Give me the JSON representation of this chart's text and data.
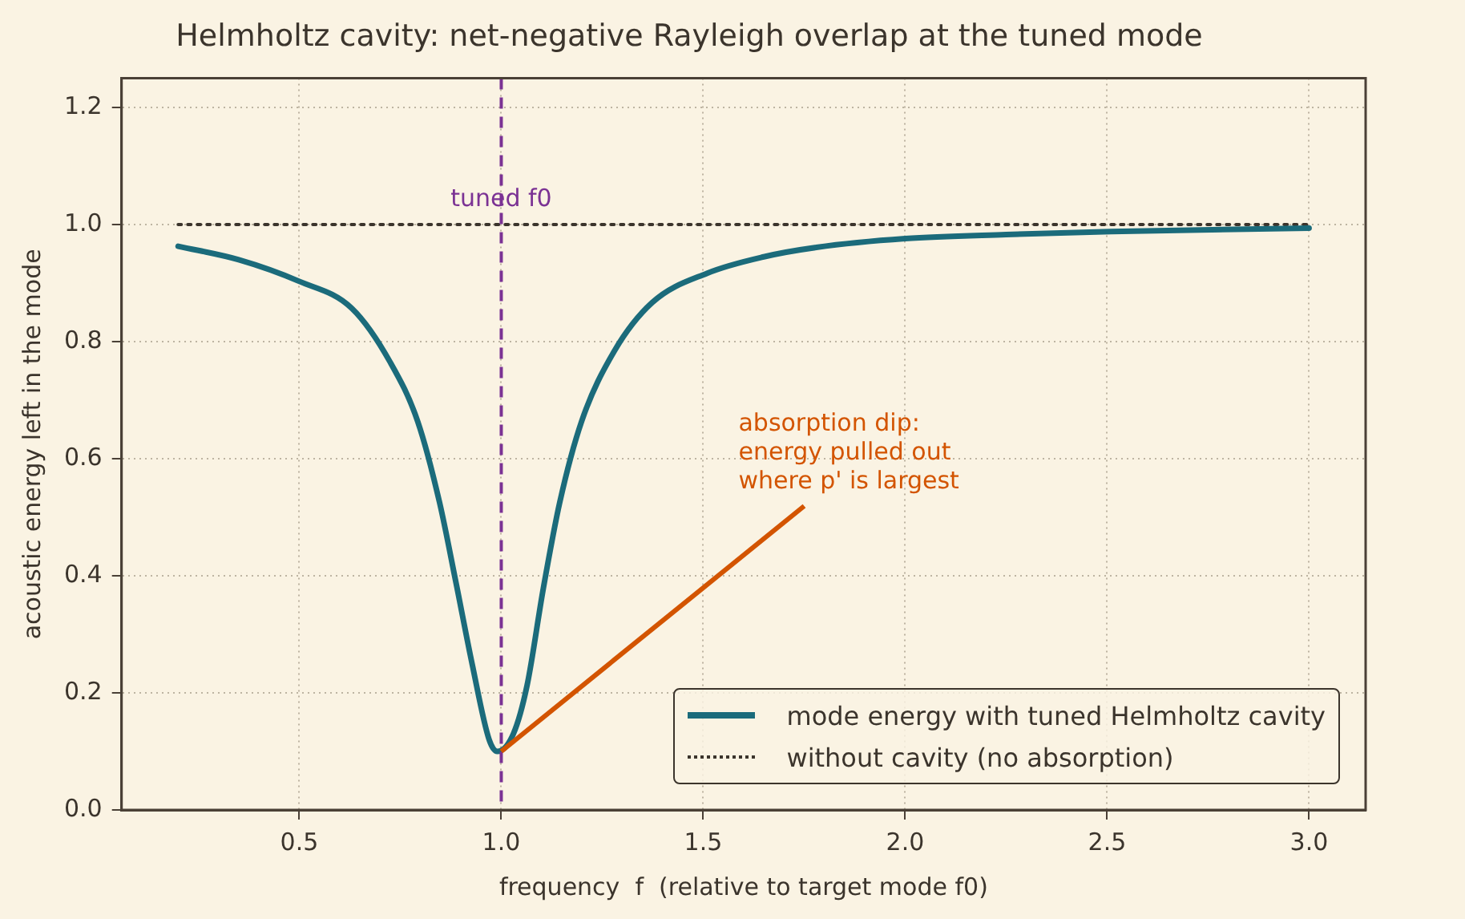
{
  "chart_data": {
    "type": "line",
    "title": "Helmholtz cavity: net-negative Rayleigh overlap at the tuned mode",
    "xlabel": "frequency  f  (relative to target mode f0)",
    "ylabel": "acoustic energy left in the mode",
    "xlim": [
      0.06,
      3.14
    ],
    "xticks": [
      0.5,
      {
        "value": 1,
        "label": "1.0"
      },
      1.5,
      {
        "value": 2,
        "label": "2.0"
      },
      2.5,
      {
        "value": 3,
        "label": "3.0"
      }
    ],
    "ylim": [
      0,
      1.25
    ],
    "yticks": [
      {
        "value": 0,
        "label": "0.0"
      },
      0.2,
      0.4,
      0.6,
      0.8,
      {
        "value": 1,
        "label": "1.0"
      },
      1.2
    ],
    "grid": true,
    "legend": "bottom right",
    "marker": "none",
    "series": [
      {
        "name": "mode energy with tuned Helmholtz cavity",
        "color": "#1b6b7b",
        "line_style": "solid",
        "x": [
          0.2,
          0.35,
          0.5,
          0.63,
          0.725,
          0.793,
          0.847,
          0.888,
          0.928,
          0.97,
          0.99,
          1.03,
          1.064,
          1.104,
          1.145,
          1.199,
          1.28,
          1.374,
          1.51,
          1.65,
          1.78,
          2.0,
          2.25,
          2.51,
          3.0
        ],
        "values": [
          0.963,
          0.94,
          0.903,
          0.857,
          0.765,
          0.664,
          0.526,
          0.388,
          0.249,
          0.12,
          0.1,
          0.13,
          0.213,
          0.378,
          0.526,
          0.664,
          0.784,
          0.867,
          0.917,
          0.945,
          0.961,
          0.976,
          0.983,
          0.988,
          0.994
        ]
      },
      {
        "name": "without cavity (no absorption)",
        "color": "#3b342c",
        "line_style": "dotted",
        "x": [
          0.2,
          3.0
        ],
        "values": [
          1.0,
          1.0
        ]
      }
    ],
    "ref_lines": [
      {
        "axis": "x",
        "value": 1.0,
        "label": "tuned f0",
        "color": "#7b3294",
        "line_style": "dashed"
      }
    ],
    "annotations": [
      {
        "text": "absorption dip:\nenergy pulled out\nwhere p' is largest",
        "x": 1.0,
        "y": 0.1
      }
    ]
  }
}
